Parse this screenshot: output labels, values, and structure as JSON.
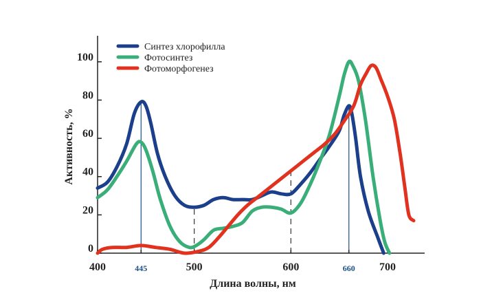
{
  "chart_data": {
    "type": "line",
    "xlabel": "Длина волны, нм",
    "ylabel": "Активность, %",
    "xlim": [
      400,
      727
    ],
    "ylim": [
      0,
      110
    ],
    "x_ticks": [
      {
        "value": 400,
        "label": "400",
        "style": "normal"
      },
      {
        "value": 445,
        "label": "445",
        "style": "special"
      },
      {
        "value": 500,
        "label": "500",
        "style": "normal"
      },
      {
        "value": 600,
        "label": "600",
        "style": "normal"
      },
      {
        "value": 660,
        "label": "660",
        "style": "special"
      },
      {
        "value": 700,
        "label": "700",
        "style": "normal"
      }
    ],
    "y_ticks": [
      {
        "value": 0,
        "label": "0"
      },
      {
        "value": 20,
        "label": "20"
      },
      {
        "value": 40,
        "label": "40"
      },
      {
        "value": 60,
        "label": "60"
      },
      {
        "value": 80,
        "label": "80"
      },
      {
        "value": 100,
        "label": "100"
      }
    ],
    "reference_lines": [
      {
        "x": 445,
        "style": "solid",
        "color": "#1b4f86",
        "y_top": 79
      },
      {
        "x": 500,
        "style": "dashed",
        "color": "#333333",
        "y_top": 23
      },
      {
        "x": 600,
        "style": "dashed",
        "color": "#333333",
        "y_top": 44
      },
      {
        "x": 660,
        "style": "solid",
        "color": "#1b4f86",
        "y_top": 77
      }
    ],
    "series": [
      {
        "name": "Синтез хлорофилла",
        "color": "#1b3f8b",
        "points": [
          [
            400,
            34
          ],
          [
            410,
            37
          ],
          [
            420,
            45
          ],
          [
            430,
            57
          ],
          [
            438,
            73
          ],
          [
            445,
            79
          ],
          [
            450,
            77
          ],
          [
            455,
            68
          ],
          [
            462,
            52
          ],
          [
            470,
            40
          ],
          [
            480,
            30
          ],
          [
            490,
            25
          ],
          [
            500,
            24
          ],
          [
            510,
            25
          ],
          [
            520,
            28
          ],
          [
            530,
            29
          ],
          [
            540,
            28
          ],
          [
            550,
            28
          ],
          [
            560,
            28
          ],
          [
            570,
            30
          ],
          [
            580,
            32
          ],
          [
            590,
            31
          ],
          [
            600,
            31
          ],
          [
            610,
            36
          ],
          [
            620,
            42
          ],
          [
            630,
            49
          ],
          [
            640,
            56
          ],
          [
            650,
            64
          ],
          [
            655,
            72
          ],
          [
            660,
            77
          ],
          [
            663,
            73
          ],
          [
            667,
            60
          ],
          [
            672,
            40
          ],
          [
            680,
            22
          ],
          [
            690,
            8
          ],
          [
            696,
            0
          ]
        ]
      },
      {
        "name": "Фотосинтез",
        "color": "#3aae78",
        "points": [
          [
            400,
            29
          ],
          [
            410,
            33
          ],
          [
            420,
            40
          ],
          [
            430,
            48
          ],
          [
            440,
            57
          ],
          [
            445,
            58
          ],
          [
            450,
            54
          ],
          [
            457,
            43
          ],
          [
            465,
            28
          ],
          [
            475,
            14
          ],
          [
            485,
            6
          ],
          [
            495,
            3
          ],
          [
            502,
            4
          ],
          [
            510,
            7
          ],
          [
            520,
            12
          ],
          [
            530,
            13
          ],
          [
            540,
            14
          ],
          [
            550,
            16
          ],
          [
            560,
            22
          ],
          [
            570,
            24
          ],
          [
            580,
            24
          ],
          [
            590,
            23
          ],
          [
            600,
            21
          ],
          [
            610,
            26
          ],
          [
            620,
            36
          ],
          [
            630,
            48
          ],
          [
            640,
            62
          ],
          [
            650,
            82
          ],
          [
            655,
            93
          ],
          [
            660,
            100
          ],
          [
            664,
            98
          ],
          [
            670,
            90
          ],
          [
            677,
            70
          ],
          [
            685,
            40
          ],
          [
            692,
            18
          ],
          [
            697,
            6
          ],
          [
            702,
            0
          ]
        ]
      },
      {
        "name": "Фотоморфогенез",
        "color": "#e0321f",
        "points": [
          [
            400,
            0
          ],
          [
            405,
            2
          ],
          [
            415,
            3
          ],
          [
            430,
            3
          ],
          [
            445,
            4
          ],
          [
            460,
            3
          ],
          [
            475,
            2
          ],
          [
            490,
            0
          ],
          [
            505,
            1
          ],
          [
            515,
            3
          ],
          [
            525,
            8
          ],
          [
            535,
            14
          ],
          [
            545,
            20
          ],
          [
            555,
            25
          ],
          [
            565,
            29
          ],
          [
            575,
            33
          ],
          [
            585,
            37
          ],
          [
            595,
            41
          ],
          [
            605,
            45
          ],
          [
            615,
            49
          ],
          [
            625,
            53
          ],
          [
            635,
            57
          ],
          [
            645,
            62
          ],
          [
            655,
            69
          ],
          [
            665,
            77
          ],
          [
            672,
            88
          ],
          [
            678,
            94
          ],
          [
            683,
            98
          ],
          [
            688,
            97
          ],
          [
            693,
            91
          ],
          [
            700,
            82
          ],
          [
            707,
            70
          ],
          [
            713,
            52
          ],
          [
            718,
            34
          ],
          [
            722,
            20
          ],
          [
            727,
            17
          ]
        ]
      }
    ],
    "legend": {
      "position": "top-left",
      "items": [
        {
          "label": "Синтез хлорофилла",
          "color": "#1b3f8b"
        },
        {
          "label": "Фотосинтез",
          "color": "#3aae78"
        },
        {
          "label": "Фотоморфогенез",
          "color": "#e0321f"
        }
      ]
    }
  }
}
